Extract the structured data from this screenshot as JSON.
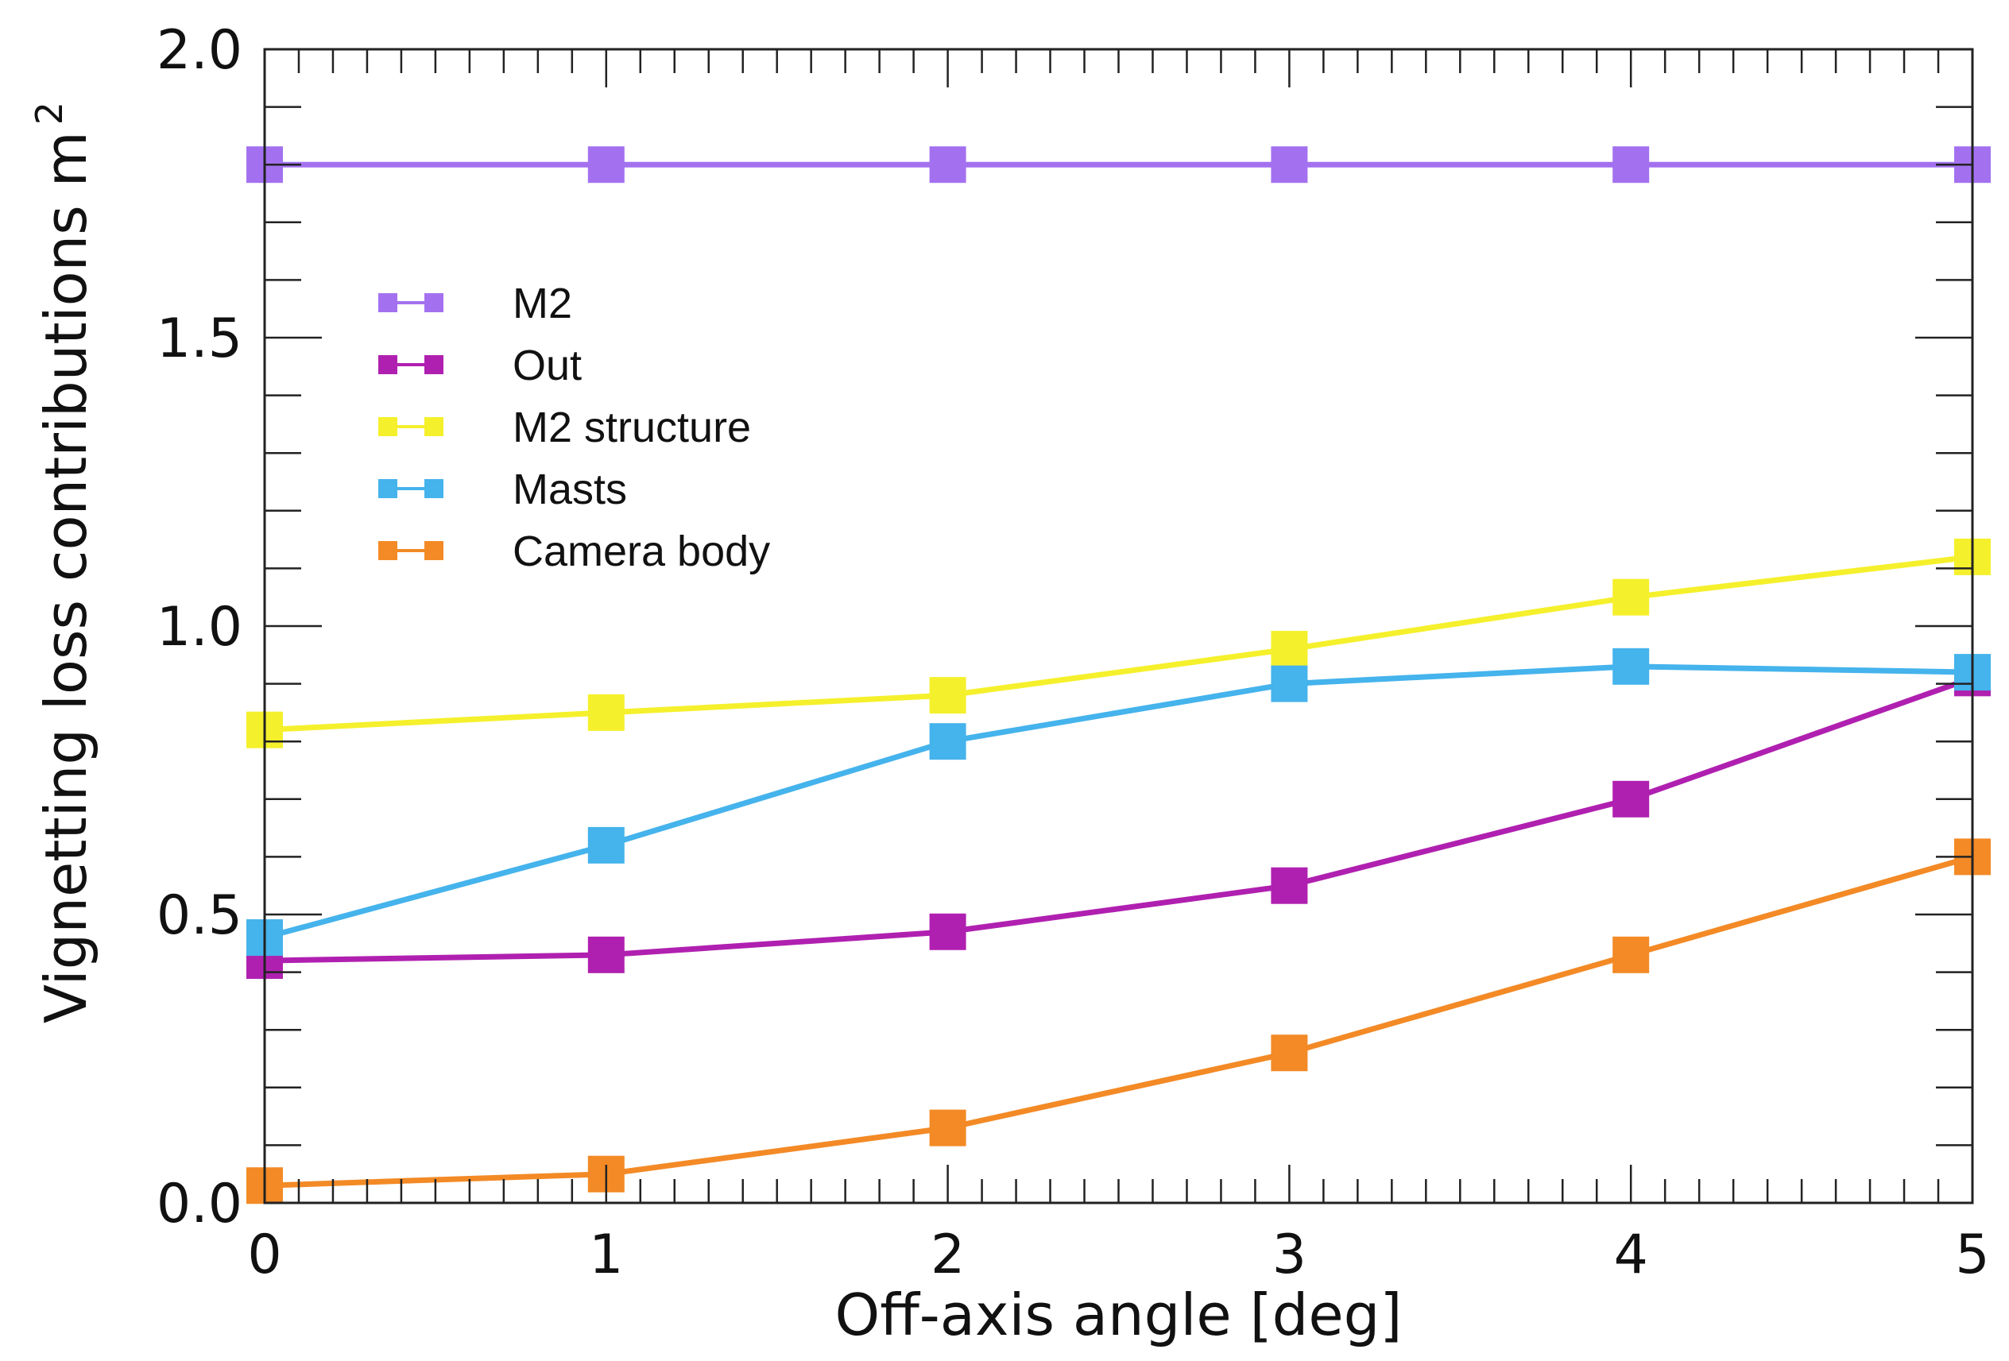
{
  "chart_data": {
    "type": "line",
    "title": "",
    "xlabel": "Off-axis angle [deg]",
    "ylabel": "Vignetting loss contributions m",
    "ylabel_superscript": "2",
    "xlim": [
      0,
      5
    ],
    "ylim": [
      0.0,
      2.0
    ],
    "x_ticks": [
      0,
      1,
      2,
      3,
      4,
      5
    ],
    "x_tick_labels": [
      "0",
      "1",
      "2",
      "3",
      "4",
      "5"
    ],
    "y_ticks": [
      0.0,
      0.5,
      1.0,
      1.5,
      2.0
    ],
    "y_tick_labels": [
      "0.0",
      "0.5",
      "1.0",
      "1.5",
      "2.0"
    ],
    "x_minor_step": 0.1,
    "y_minor_step": 0.1,
    "grid": false,
    "legend_position": "upper-left",
    "x": [
      0,
      1,
      2,
      3,
      4,
      5
    ],
    "series": [
      {
        "name": "M2",
        "color": "#a371f0",
        "values": [
          1.8,
          1.8,
          1.8,
          1.8,
          1.8,
          1.8
        ]
      },
      {
        "name": "Out",
        "color": "#b020b0",
        "values": [
          0.42,
          0.43,
          0.47,
          0.55,
          0.7,
          0.91
        ]
      },
      {
        "name": "M2 structure",
        "color": "#f5f02c",
        "values": [
          0.82,
          0.85,
          0.88,
          0.96,
          1.05,
          1.12
        ]
      },
      {
        "name": "Masts",
        "color": "#45b3ec",
        "values": [
          0.46,
          0.62,
          0.8,
          0.9,
          0.93,
          0.92
        ]
      },
      {
        "name": "Camera body",
        "color": "#f38a26",
        "values": [
          0.03,
          0.05,
          0.13,
          0.26,
          0.43,
          0.6
        ]
      }
    ]
  }
}
